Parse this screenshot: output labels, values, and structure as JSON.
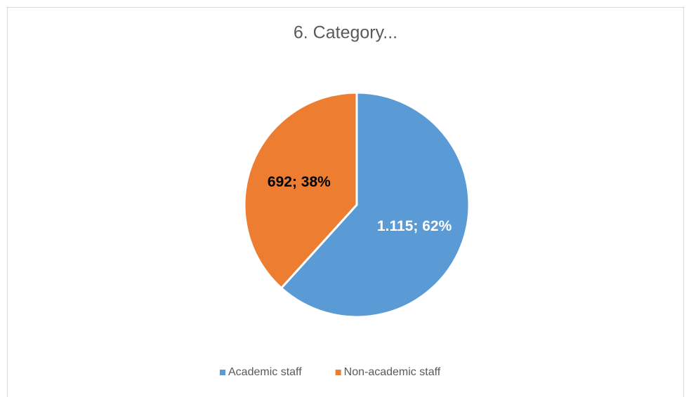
{
  "chart_data": {
    "type": "pie",
    "title": "6. Category...",
    "categories": [
      "Academic staff",
      "Non-academic staff"
    ],
    "values": [
      1115,
      692
    ],
    "value_labels": [
      "1.115; 62%",
      "692; 38%"
    ],
    "colors": [
      "#5b9bd5",
      "#ed7d31"
    ],
    "label_colors": [
      "#ffffff",
      "#000000"
    ],
    "legend": "bottom"
  }
}
